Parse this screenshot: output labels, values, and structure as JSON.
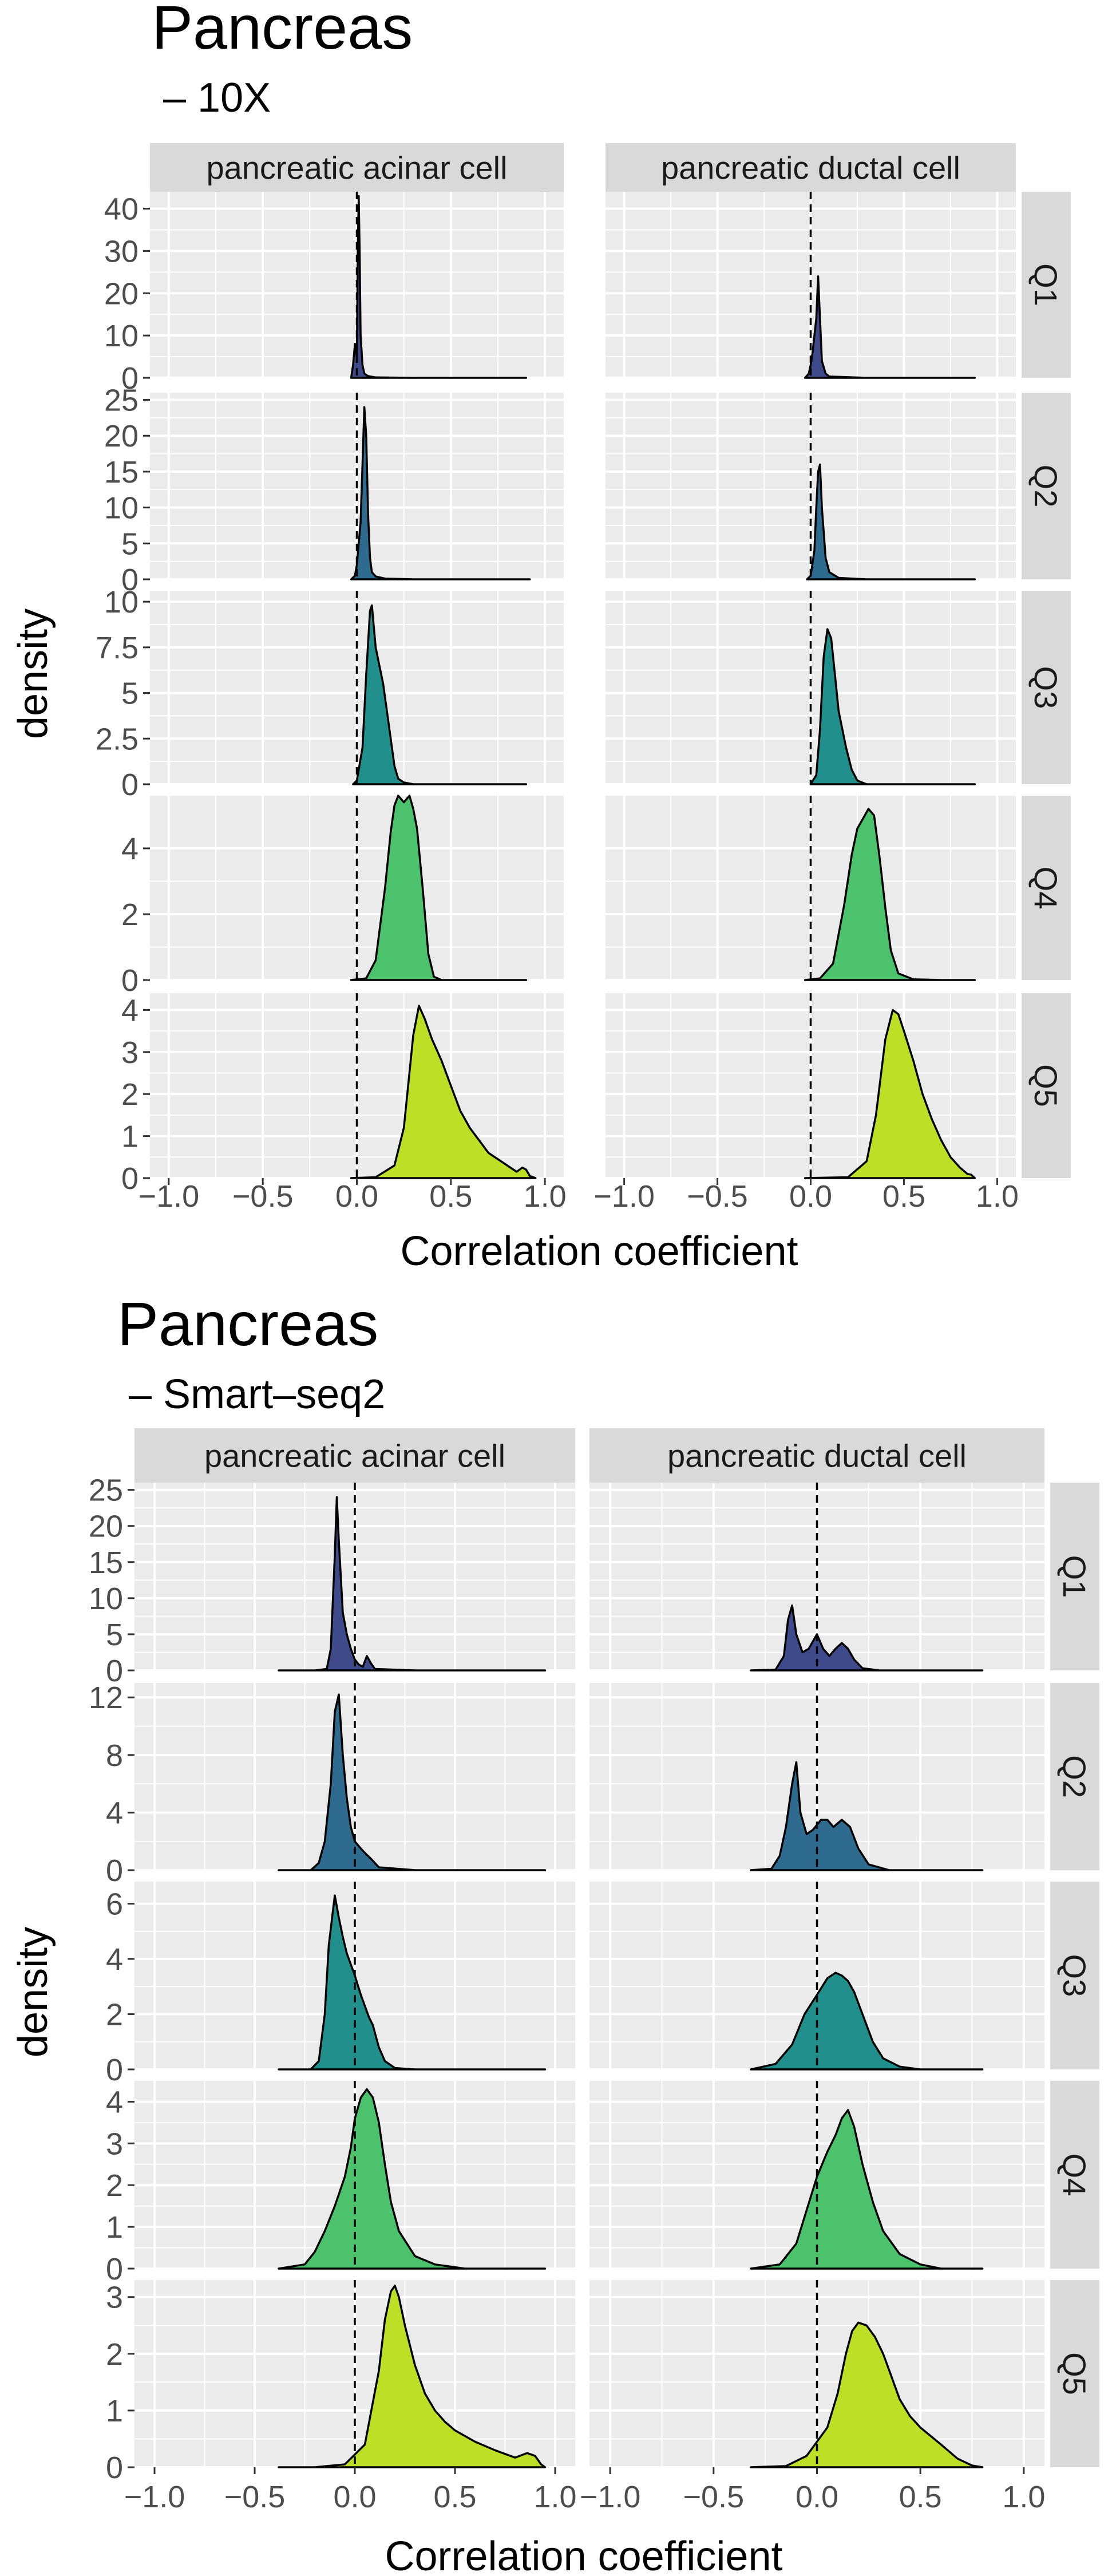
{
  "colors": {
    "panel_bg": "#ebebeb",
    "grid": "#ffffff",
    "strip_bg": "#d9d9d9",
    "outline": "#000000",
    "Q1": "#3f4a8a",
    "Q2": "#2e6b8e",
    "Q3": "#21908c",
    "Q4": "#4cc26c",
    "Q5": "#bddf26"
  },
  "chart_data": [
    {
      "type": "area",
      "title": "Pancreas",
      "subtitle": "– 10X",
      "xlabel": "Correlation coefficient",
      "ylabel": "density",
      "columns": [
        "pancreatic acinar cell",
        "pancreatic ductal cell"
      ],
      "rows": [
        "Q1",
        "Q2",
        "Q3",
        "Q4",
        "Q5"
      ],
      "xlim": [
        -1.1,
        1.1
      ],
      "x_ticks": [
        -1.0,
        -0.5,
        0.0,
        0.5,
        1.0
      ],
      "x_tick_labels": [
        "−1.0",
        "−0.5",
        "0.0",
        "0.5",
        "1.0"
      ],
      "reference_line_x": 0,
      "rows_meta": [
        {
          "name": "Q1",
          "ylim": [
            0,
            44
          ],
          "ticks": [
            0,
            10,
            20,
            30,
            40
          ]
        },
        {
          "name": "Q2",
          "ylim": [
            0,
            26
          ],
          "ticks": [
            0,
            5,
            10,
            15,
            20,
            25
          ]
        },
        {
          "name": "Q3",
          "ylim": [
            0,
            10.6
          ],
          "ticks": [
            0.0,
            2.5,
            5.0,
            7.5,
            10.0
          ]
        },
        {
          "name": "Q4",
          "ylim": [
            0,
            5.6
          ],
          "ticks": [
            0,
            2,
            4
          ]
        },
        {
          "name": "Q5",
          "ylim": [
            0,
            4.4
          ],
          "ticks": [
            0,
            1,
            2,
            3,
            4
          ]
        }
      ],
      "series": [
        {
          "row": "Q1",
          "column": "pancreatic acinar cell",
          "x": [
            -0.03,
            -0.02,
            -0.01,
            0.0,
            0.005,
            0.01,
            0.015,
            0.02,
            0.03,
            0.04,
            0.06,
            0.1,
            0.3,
            0.6,
            0.9
          ],
          "y": [
            0,
            3,
            8,
            5,
            30,
            43,
            30,
            10,
            3,
            1,
            0.4,
            0.1,
            0,
            0,
            0
          ]
        },
        {
          "row": "Q1",
          "column": "pancreatic ductal cell",
          "x": [
            -0.03,
            -0.01,
            0.0,
            0.01,
            0.02,
            0.03,
            0.04,
            0.05,
            0.06,
            0.08,
            0.1,
            0.3,
            0.6,
            0.88
          ],
          "y": [
            0,
            1,
            3,
            6,
            10,
            14,
            24,
            14,
            4,
            1,
            0.3,
            0,
            0,
            0
          ]
        },
        {
          "row": "Q2",
          "column": "pancreatic acinar cell",
          "x": [
            -0.03,
            -0.01,
            0.0,
            0.02,
            0.03,
            0.04,
            0.05,
            0.06,
            0.07,
            0.08,
            0.1,
            0.15,
            0.3,
            0.6,
            0.92
          ],
          "y": [
            0,
            0.5,
            2,
            8,
            16,
            24,
            20,
            9,
            3,
            1,
            0.4,
            0.1,
            0,
            0,
            0
          ]
        },
        {
          "row": "Q2",
          "column": "pancreatic ductal cell",
          "x": [
            -0.02,
            0.0,
            0.02,
            0.03,
            0.04,
            0.05,
            0.06,
            0.08,
            0.1,
            0.15,
            0.3,
            0.6,
            0.88
          ],
          "y": [
            0,
            0.5,
            4,
            10,
            15,
            16,
            10,
            3,
            1,
            0.2,
            0,
            0,
            0
          ]
        },
        {
          "row": "Q3",
          "column": "pancreatic acinar cell",
          "x": [
            -0.02,
            0.0,
            0.03,
            0.05,
            0.07,
            0.08,
            0.1,
            0.12,
            0.14,
            0.16,
            0.18,
            0.2,
            0.22,
            0.25,
            0.3,
            0.5,
            0.9
          ],
          "y": [
            0,
            0.2,
            2,
            6,
            9.5,
            9.8,
            7.5,
            6.5,
            5.5,
            4,
            2.5,
            1,
            0.3,
            0.1,
            0,
            0,
            0
          ]
        },
        {
          "row": "Q3",
          "column": "pancreatic ductal cell",
          "x": [
            0.0,
            0.03,
            0.05,
            0.07,
            0.09,
            0.11,
            0.13,
            0.15,
            0.17,
            0.19,
            0.22,
            0.25,
            0.3,
            0.5,
            0.88
          ],
          "y": [
            0,
            0.5,
            3,
            7,
            8.5,
            8,
            6,
            4,
            3,
            2,
            0.8,
            0.2,
            0,
            0,
            0
          ]
        },
        {
          "row": "Q4",
          "column": "pancreatic acinar cell",
          "x": [
            -0.03,
            0.05,
            0.1,
            0.15,
            0.18,
            0.2,
            0.22,
            0.25,
            0.28,
            0.3,
            0.32,
            0.35,
            0.38,
            0.41,
            0.45,
            0.6,
            0.9
          ],
          "y": [
            0,
            0.05,
            0.6,
            2.8,
            4.5,
            5.3,
            5.6,
            5.4,
            5.6,
            5.2,
            4.6,
            2.8,
            0.8,
            0.1,
            0,
            0,
            0
          ]
        },
        {
          "row": "Q4",
          "column": "pancreatic ductal cell",
          "x": [
            -0.03,
            0.05,
            0.12,
            0.18,
            0.22,
            0.25,
            0.28,
            0.31,
            0.34,
            0.37,
            0.4,
            0.43,
            0.47,
            0.55,
            0.7,
            0.88
          ],
          "y": [
            0,
            0.05,
            0.5,
            2.3,
            3.8,
            4.6,
            4.9,
            5.2,
            5.0,
            3.7,
            2.2,
            0.9,
            0.2,
            0.02,
            0,
            0
          ]
        },
        {
          "row": "Q5",
          "column": "pancreatic acinar cell",
          "x": [
            -0.03,
            0.1,
            0.2,
            0.25,
            0.3,
            0.33,
            0.36,
            0.4,
            0.45,
            0.5,
            0.55,
            0.6,
            0.65,
            0.7,
            0.75,
            0.8,
            0.85,
            0.88,
            0.9,
            0.92,
            0.95
          ],
          "y": [
            0,
            0.02,
            0.3,
            1.2,
            3.4,
            4.1,
            3.8,
            3.3,
            2.8,
            2.2,
            1.6,
            1.2,
            0.9,
            0.6,
            0.45,
            0.3,
            0.15,
            0.25,
            0.2,
            0.05,
            0
          ]
        },
        {
          "row": "Q5",
          "column": "pancreatic ductal cell",
          "x": [
            -0.03,
            0.2,
            0.3,
            0.35,
            0.4,
            0.44,
            0.47,
            0.5,
            0.55,
            0.6,
            0.65,
            0.7,
            0.75,
            0.8,
            0.84,
            0.86,
            0.88
          ],
          "y": [
            0,
            0.02,
            0.4,
            1.5,
            3.3,
            4.0,
            3.9,
            3.5,
            2.8,
            2.0,
            1.4,
            0.9,
            0.5,
            0.25,
            0.1,
            0.08,
            0
          ]
        }
      ]
    },
    {
      "type": "area",
      "title": "Pancreas",
      "subtitle": "– Smart–seq2",
      "xlabel": "Correlation coefficient",
      "ylabel": "density",
      "columns": [
        "pancreatic acinar cell",
        "pancreatic ductal cell"
      ],
      "rows": [
        "Q1",
        "Q2",
        "Q3",
        "Q4",
        "Q5"
      ],
      "xlim": [
        -1.1,
        1.1
      ],
      "x_ticks": [
        -1.0,
        -0.5,
        0.0,
        0.5,
        1.0
      ],
      "x_tick_labels": [
        "−1.0",
        "−0.5",
        "0.0",
        "0.5",
        "1.0"
      ],
      "reference_line_x": 0,
      "rows_meta": [
        {
          "name": "Q1",
          "ylim": [
            0,
            26
          ],
          "ticks": [
            0,
            5,
            10,
            15,
            20,
            25
          ]
        },
        {
          "name": "Q2",
          "ylim": [
            0,
            13
          ],
          "ticks": [
            0,
            4,
            8,
            12
          ]
        },
        {
          "name": "Q3",
          "ylim": [
            0,
            6.8
          ],
          "ticks": [
            0,
            2,
            4,
            6
          ]
        },
        {
          "name": "Q4",
          "ylim": [
            0,
            4.5
          ],
          "ticks": [
            0,
            1,
            2,
            3,
            4
          ]
        },
        {
          "name": "Q5",
          "ylim": [
            0,
            3.3
          ],
          "ticks": [
            0,
            1,
            2,
            3
          ]
        }
      ],
      "series": [
        {
          "row": "Q1",
          "column": "pancreatic acinar cell",
          "x": [
            -0.38,
            -0.2,
            -0.14,
            -0.12,
            -0.1,
            -0.09,
            -0.08,
            -0.06,
            -0.04,
            -0.02,
            0.0,
            0.02,
            0.04,
            0.06,
            0.08,
            0.1,
            0.3,
            0.95
          ],
          "y": [
            0,
            0,
            0.2,
            3,
            16,
            24,
            18,
            8,
            5,
            3,
            1.5,
            0.8,
            0.5,
            2,
            1,
            0.2,
            0,
            0
          ]
        },
        {
          "row": "Q1",
          "column": "pancreatic ductal cell",
          "x": [
            -0.32,
            -0.2,
            -0.16,
            -0.14,
            -0.12,
            -0.1,
            -0.07,
            -0.04,
            0.0,
            0.03,
            0.06,
            0.09,
            0.12,
            0.15,
            0.18,
            0.22,
            0.3,
            0.8
          ],
          "y": [
            0,
            0.1,
            2,
            7,
            9,
            5,
            2.5,
            3,
            5,
            3,
            2,
            3,
            3.8,
            3,
            1.5,
            0.3,
            0,
            0
          ]
        },
        {
          "row": "Q2",
          "column": "pancreatic acinar cell",
          "x": [
            -0.38,
            -0.22,
            -0.18,
            -0.15,
            -0.12,
            -0.1,
            -0.08,
            -0.06,
            -0.04,
            -0.02,
            0.0,
            0.03,
            0.05,
            0.08,
            0.12,
            0.3,
            0.95
          ],
          "y": [
            0,
            0,
            0.5,
            2,
            6,
            11,
            12.2,
            8,
            5,
            3,
            2,
            1.5,
            1.2,
            0.8,
            0.2,
            0,
            0
          ]
        },
        {
          "row": "Q2",
          "column": "pancreatic ductal cell",
          "x": [
            -0.32,
            -0.22,
            -0.18,
            -0.15,
            -0.12,
            -0.1,
            -0.08,
            -0.05,
            -0.02,
            0.02,
            0.05,
            0.08,
            0.12,
            0.16,
            0.2,
            0.25,
            0.35,
            0.8
          ],
          "y": [
            0,
            0.1,
            1,
            3,
            6,
            7.5,
            4,
            2.5,
            2.8,
            3.5,
            3.5,
            3,
            3.5,
            3,
            1.5,
            0.4,
            0,
            0
          ]
        },
        {
          "row": "Q3",
          "column": "pancreatic acinar cell",
          "x": [
            -0.38,
            -0.22,
            -0.18,
            -0.15,
            -0.13,
            -0.1,
            -0.08,
            -0.06,
            -0.04,
            -0.02,
            0.0,
            0.03,
            0.05,
            0.07,
            0.09,
            0.12,
            0.15,
            0.2,
            0.3,
            0.95
          ],
          "y": [
            0,
            0,
            0.3,
            2,
            4.5,
            6.3,
            5.5,
            4.8,
            4.2,
            3.8,
            3.4,
            2.7,
            2.3,
            1.9,
            1.6,
            0.8,
            0.3,
            0.05,
            0,
            0
          ]
        },
        {
          "row": "Q3",
          "column": "pancreatic ductal cell",
          "x": [
            -0.32,
            -0.2,
            -0.12,
            -0.06,
            0.0,
            0.05,
            0.09,
            0.12,
            0.15,
            0.18,
            0.22,
            0.27,
            0.32,
            0.4,
            0.5,
            0.8
          ],
          "y": [
            0,
            0.2,
            0.9,
            2.0,
            2.7,
            3.3,
            3.5,
            3.4,
            3.2,
            2.8,
            2.0,
            1.0,
            0.4,
            0.1,
            0,
            0
          ]
        },
        {
          "row": "Q4",
          "column": "pancreatic acinar cell",
          "x": [
            -0.38,
            -0.25,
            -0.2,
            -0.15,
            -0.1,
            -0.05,
            -0.02,
            0.0,
            0.03,
            0.06,
            0.09,
            0.12,
            0.15,
            0.18,
            0.22,
            0.3,
            0.4,
            0.55,
            0.95
          ],
          "y": [
            0,
            0.1,
            0.4,
            0.9,
            1.5,
            2.2,
            2.9,
            3.6,
            4.1,
            4.3,
            4.1,
            3.5,
            2.5,
            1.6,
            0.9,
            0.3,
            0.1,
            0,
            0
          ]
        },
        {
          "row": "Q4",
          "column": "pancreatic ductal cell",
          "x": [
            -0.32,
            -0.18,
            -0.1,
            -0.05,
            0.0,
            0.05,
            0.09,
            0.12,
            0.15,
            0.18,
            0.22,
            0.27,
            0.32,
            0.4,
            0.5,
            0.6,
            0.8
          ],
          "y": [
            0,
            0.1,
            0.6,
            1.4,
            2.2,
            2.8,
            3.2,
            3.6,
            3.8,
            3.4,
            2.5,
            1.6,
            0.9,
            0.35,
            0.1,
            0,
            0
          ]
        },
        {
          "row": "Q5",
          "column": "pancreatic acinar cell",
          "x": [
            -0.38,
            -0.2,
            -0.05,
            0.05,
            0.12,
            0.15,
            0.18,
            0.2,
            0.22,
            0.25,
            0.3,
            0.35,
            0.4,
            0.45,
            0.5,
            0.6,
            0.7,
            0.8,
            0.86,
            0.9,
            0.93,
            0.95
          ],
          "y": [
            0,
            0,
            0.05,
            0.4,
            1.7,
            2.6,
            3.1,
            3.2,
            3.0,
            2.5,
            1.8,
            1.3,
            1.0,
            0.8,
            0.65,
            0.45,
            0.3,
            0.17,
            0.25,
            0.2,
            0.05,
            0
          ]
        },
        {
          "row": "Q5",
          "column": "pancreatic ductal cell",
          "x": [
            -0.32,
            -0.15,
            -0.05,
            0.05,
            0.1,
            0.14,
            0.17,
            0.2,
            0.24,
            0.28,
            0.32,
            0.35,
            0.4,
            0.45,
            0.5,
            0.55,
            0.6,
            0.68,
            0.75,
            0.8
          ],
          "y": [
            0,
            0.02,
            0.2,
            0.7,
            1.3,
            2.0,
            2.4,
            2.55,
            2.5,
            2.3,
            2.0,
            1.7,
            1.2,
            0.9,
            0.7,
            0.55,
            0.4,
            0.15,
            0.03,
            0
          ]
        }
      ]
    }
  ]
}
